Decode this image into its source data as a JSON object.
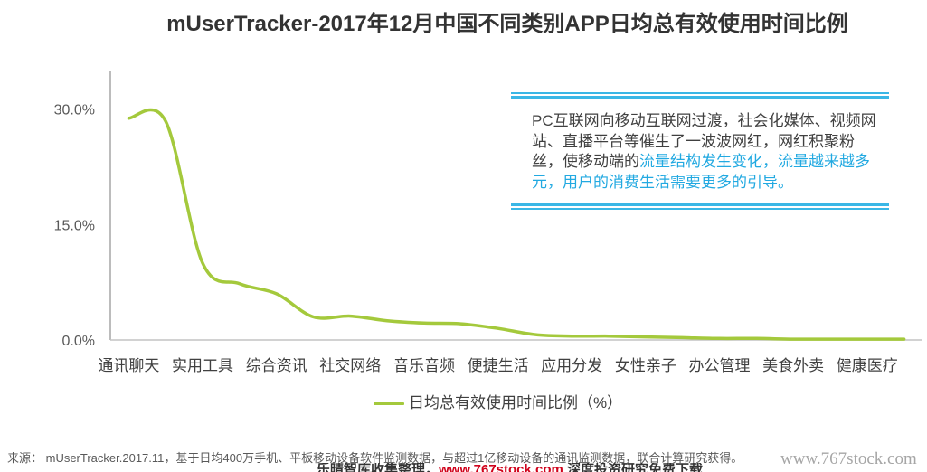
{
  "colors": {
    "series_line": "#a4c93c",
    "accent_rule": "#3ab7e6",
    "highlight_text": "#22a9e1"
  },
  "chart_data": {
    "type": "line",
    "title": "mUserTracker-2017年12月中国不同类别APP日均总有效使用时间比例",
    "categories": [
      "通讯聊天",
      "",
      "实用工具",
      "",
      "综合资讯",
      "",
      "社交网络",
      "",
      "音乐音频",
      "",
      "便捷生活",
      "",
      "应用分发",
      "",
      "女性亲子",
      "",
      "办公管理",
      "",
      "美食外卖",
      "",
      "健康医疗",
      ""
    ],
    "series": [
      {
        "name": "日均总有效使用时间比例（%）",
        "values": [
          28.8,
          28.4,
          10.0,
          7.3,
          6.0,
          3.0,
          3.1,
          2.5,
          2.2,
          2.1,
          1.5,
          0.7,
          0.5,
          0.5,
          0.4,
          0.3,
          0.2,
          0.2,
          0.1,
          0.1,
          0.1,
          0.1
        ]
      }
    ],
    "ylim": [
      0,
      35
    ],
    "yticks": [
      0,
      15,
      30
    ],
    "ytick_labels": [
      "0.0%",
      "15.0%",
      "30.0%"
    ],
    "smooth": true,
    "grid": false,
    "legend": "bottom-center"
  },
  "annotation": {
    "lines": [
      {
        "text": "PC互联网向移动互联网过渡，社会化媒体、视频网"
      },
      {
        "text": "站、直播平台等催生了一波波网红，网红积聚粉"
      },
      {
        "text": "丝，使移动端的",
        "highlight": "流量结构发生变化，流量越来越多"
      },
      {
        "highlight": "元，用户的消费生活需要更多的引导。"
      }
    ]
  },
  "source": "来源： mUserTracker.2017.11，基于日均400万手机、平板移动设备软件监测数据，与超过1亿移动设备的通讯监测数据，联合计算研究获得。",
  "watermark": "www.767stock.com",
  "footer": {
    "prefix": "乐晴智库收集整理，",
    "url": "www.767stock.com",
    "suffix": " 深度投资研究免费下载"
  }
}
